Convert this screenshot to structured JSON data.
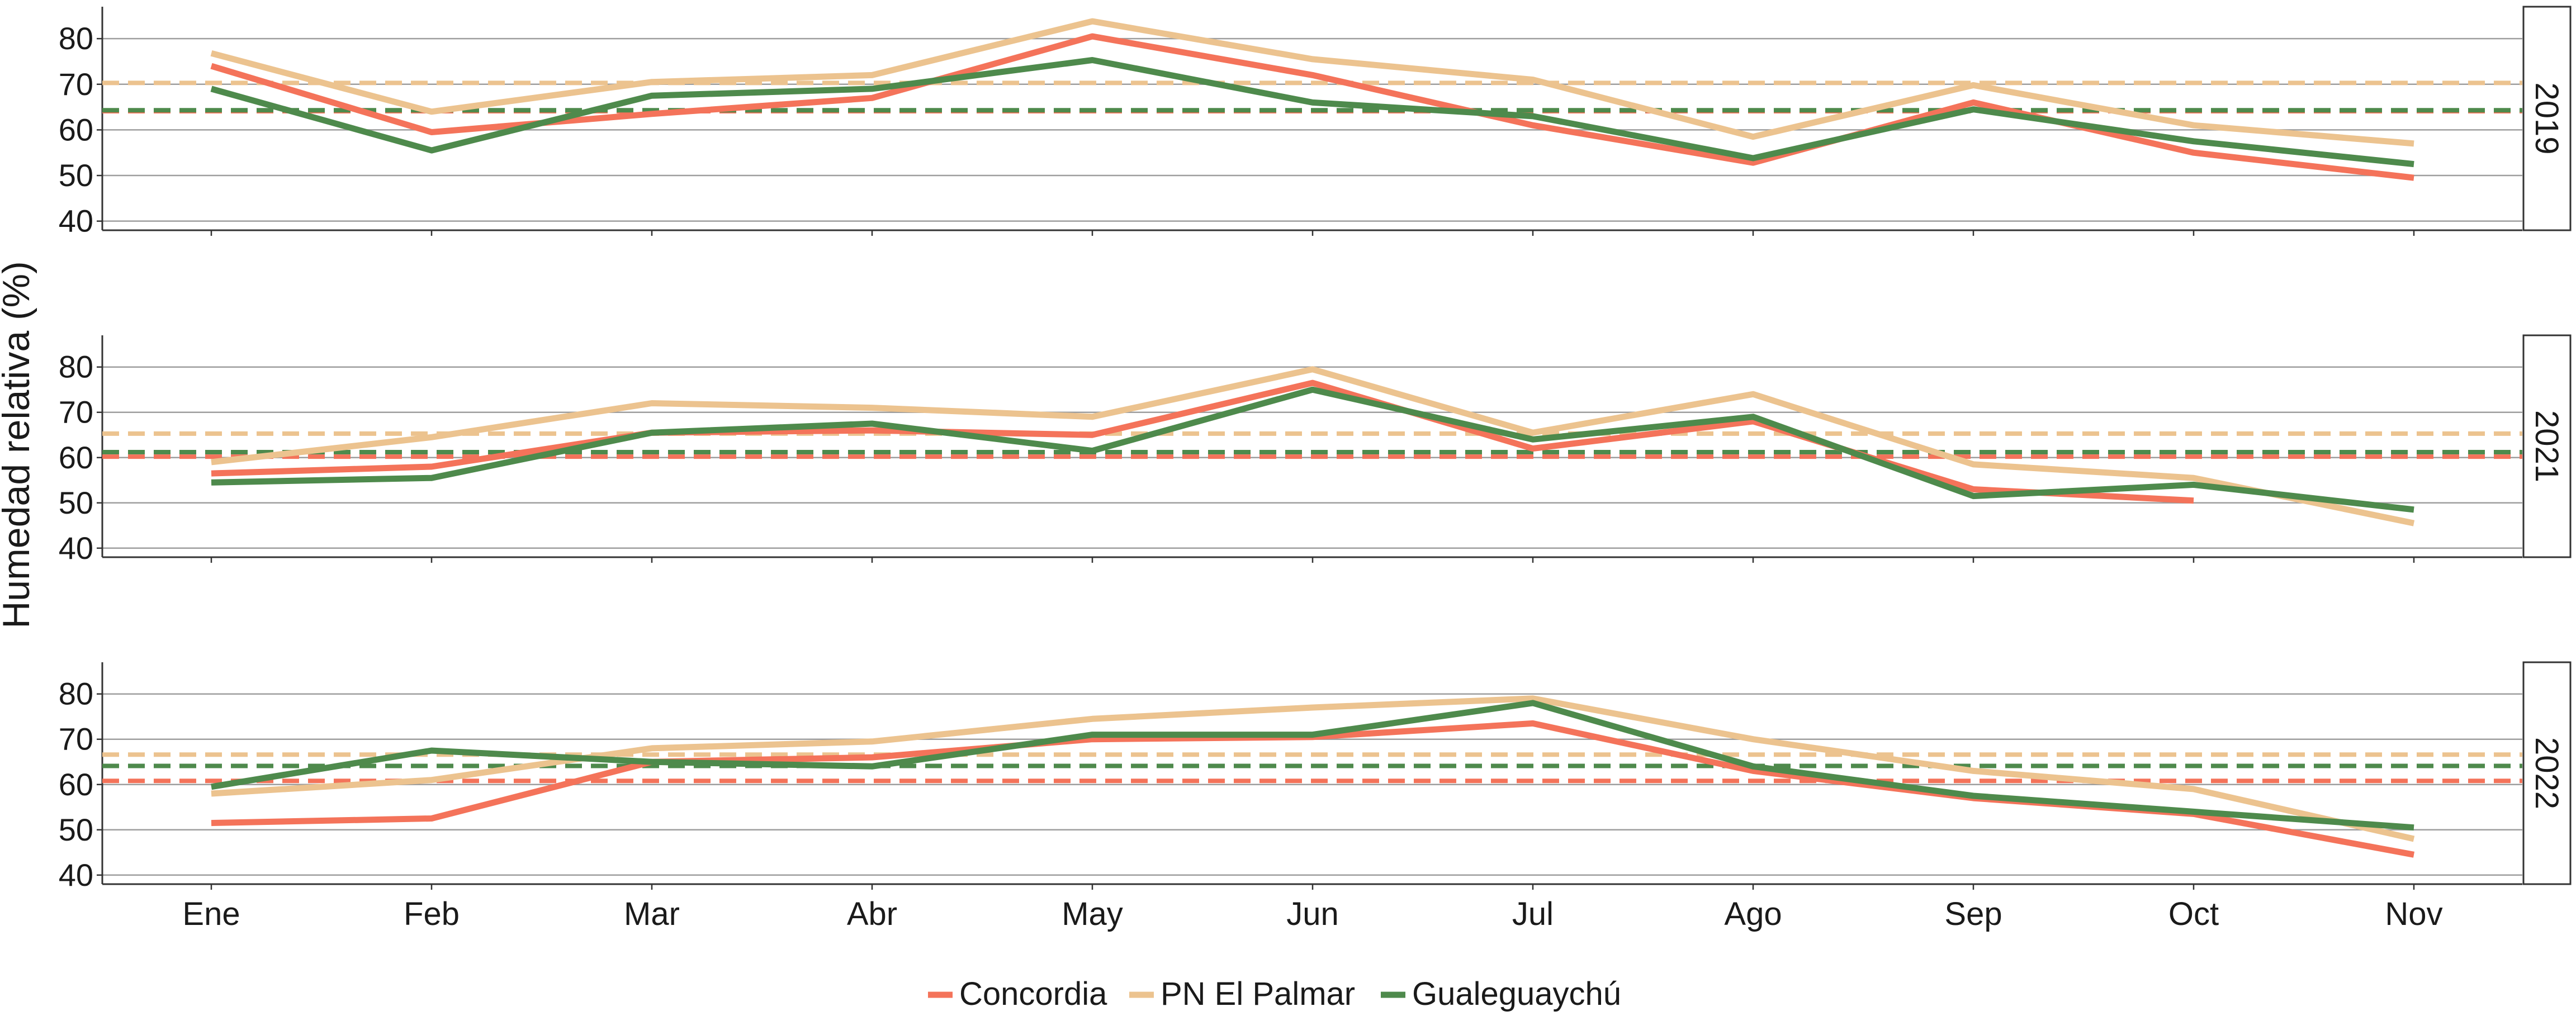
{
  "chart_data": {
    "type": "line",
    "ylabel": "Humedad relativa (%)",
    "xlabel": "",
    "categories": [
      "Ene",
      "Feb",
      "Mar",
      "Abr",
      "May",
      "Jun",
      "Jul",
      "Ago",
      "Sep",
      "Oct",
      "Nov"
    ],
    "ylim": [
      38,
      87
    ],
    "yticks": [
      40,
      50,
      60,
      70,
      80
    ],
    "grid": "horizontal",
    "legend_position": "bottom",
    "colors": {
      "Concordia": "#f4735a",
      "PN El Palmar": "#ecc38f",
      "Gualeguaychú": "#4e8a4c"
    },
    "legend": [
      "Concordia",
      "PN El Palmar",
      "Gualeguaychú"
    ],
    "panels": [
      {
        "label": "2019",
        "series": [
          {
            "name": "Concordia",
            "x": [
              1,
              2,
              3,
              4,
              5,
              6,
              7,
              8,
              9,
              10,
              11
            ],
            "values": [
              74,
              59.5,
              63.5,
              67,
              80.5,
              72,
              61,
              52.8,
              66,
              55,
              49.5
            ]
          },
          {
            "name": "PN El Palmar",
            "x": [
              1,
              2,
              3,
              4,
              5,
              6,
              7,
              8,
              9,
              10,
              11
            ],
            "values": [
              76.8,
              64,
              70.5,
              72,
              83.8,
              75.5,
              71,
              58.5,
              69.8,
              61,
              57
            ]
          },
          {
            "name": "Gualeguaychú",
            "x": [
              1,
              2,
              3,
              4,
              5,
              6,
              7,
              8,
              9,
              10,
              11
            ],
            "values": [
              69,
              55.5,
              67.5,
              69,
              75.3,
              66,
              63,
              53.8,
              64.5,
              57.5,
              52.5
            ]
          }
        ],
        "means": [
          {
            "name": "Concordia",
            "value": 64.1
          },
          {
            "name": "PN El Palmar",
            "value": 70.3
          },
          {
            "name": "Gualeguaychú",
            "value": 64.3
          }
        ]
      },
      {
        "label": "2021",
        "series": [
          {
            "name": "Concordia",
            "x": [
              1,
              2,
              3,
              4,
              5,
              6,
              7,
              8,
              9,
              10
            ],
            "values": [
              56.5,
              58,
              65.5,
              66,
              65,
              76.5,
              62,
              68,
              53,
              50.5
            ]
          },
          {
            "name": "PN El Palmar",
            "x": [
              1,
              2,
              3,
              4,
              5,
              6,
              7,
              8,
              9,
              10,
              11
            ],
            "values": [
              59,
              64.5,
              72,
              71,
              69,
              79.5,
              65.5,
              74,
              58.5,
              55.5,
              45.5
            ]
          },
          {
            "name": "Gualeguaychú",
            "x": [
              1,
              2,
              3,
              4,
              5,
              6,
              7,
              8,
              9,
              10,
              11
            ],
            "values": [
              54.5,
              55.5,
              65.5,
              67.5,
              61.5,
              75,
              64,
              69,
              51.5,
              54,
              48.5
            ]
          }
        ],
        "means": [
          {
            "name": "Concordia",
            "value": 60.2
          },
          {
            "name": "PN El Palmar",
            "value": 65.3
          },
          {
            "name": "Gualeguaychú",
            "value": 61.2
          }
        ]
      },
      {
        "label": "2022",
        "series": [
          {
            "name": "Concordia",
            "x": [
              1,
              2,
              3,
              4,
              5,
              6,
              7,
              8,
              9,
              10,
              11
            ],
            "values": [
              51.5,
              52.5,
              65,
              66,
              70,
              70.5,
              73.5,
              63,
              57,
              53.5,
              44.5
            ]
          },
          {
            "name": "PN El Palmar",
            "x": [
              1,
              2,
              3,
              4,
              5,
              6,
              7,
              8,
              9,
              10,
              11
            ],
            "values": [
              58,
              61,
              68,
              69.5,
              74.5,
              77,
              79,
              70,
              63,
              59,
              48
            ]
          },
          {
            "name": "Gualeguaychú",
            "x": [
              1,
              2,
              3,
              4,
              5,
              6,
              7,
              8,
              9,
              10,
              11
            ],
            "values": [
              59.5,
              67.5,
              65,
              64,
              71,
              71,
              78,
              64,
              57.5,
              54,
              50.5
            ]
          }
        ],
        "means": [
          {
            "name": "Concordia",
            "value": 60.8
          },
          {
            "name": "PN El Palmar",
            "value": 66.6
          },
          {
            "name": "Gualeguaychú",
            "value": 64.1
          }
        ]
      }
    ]
  }
}
